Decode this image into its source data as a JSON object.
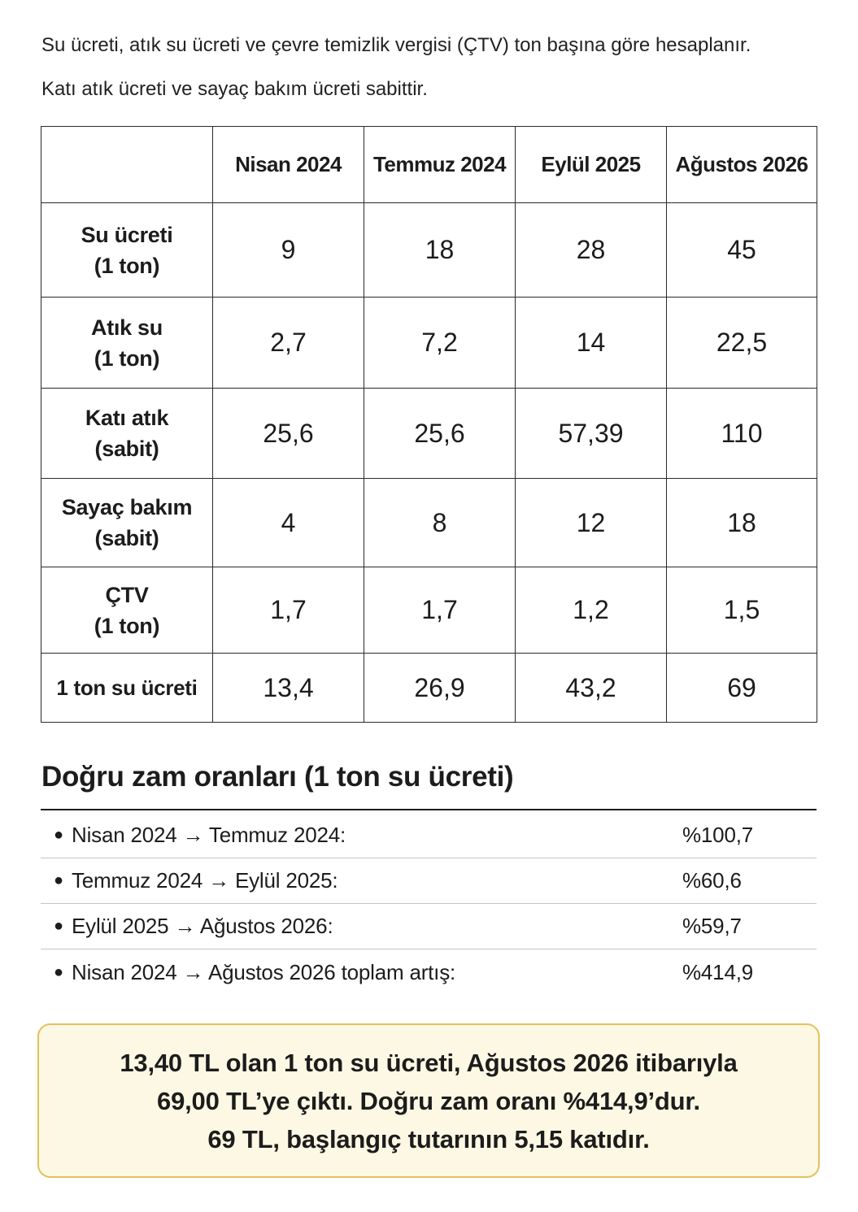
{
  "intro": {
    "line1": "Su ücreti, atık su ücreti ve çevre temizlik vergisi (ÇTV) ton başına göre hesaplanır.",
    "line2": "Katı atık ücreti ve sayaç bakım ücreti sabittir."
  },
  "table": {
    "corner": "",
    "columns": [
      "Nisan 2024",
      "Temmuz 2024",
      "Eylül 2025",
      "Ağustos 2026"
    ],
    "rows": [
      {
        "label_line1": "Su ücreti",
        "label_line2": "(1 ton)",
        "values": [
          "9",
          "18",
          "28",
          "45"
        ]
      },
      {
        "label_line1": "Atık su",
        "label_line2": "(1 ton)",
        "values": [
          "2,7",
          "7,2",
          "14",
          "22,5"
        ]
      },
      {
        "label_line1": "Katı atık",
        "label_line2": "(sabit)",
        "values": [
          "25,6",
          "25,6",
          "57,39",
          "110"
        ]
      },
      {
        "label_line1": "Sayaç bakım",
        "label_line2": "(sabit)",
        "values": [
          "4",
          "8",
          "12",
          "18"
        ]
      },
      {
        "label_line1": "ÇTV",
        "label_line2": "(1 ton)",
        "values": [
          "1,7",
          "1,7",
          "1,2",
          "1,5"
        ]
      },
      {
        "label_line1": "1 ton su ücreti",
        "label_line2": "",
        "values": [
          "13,4",
          "26,9",
          "43,2",
          "69"
        ]
      }
    ]
  },
  "rates": {
    "title": "Doğru zam oranları (1 ton su ücreti)",
    "items": [
      {
        "label": "Nisan 2024 → Temmuz 2024:",
        "value": "%100,7"
      },
      {
        "label": "Temmuz 2024 → Eylül 2025:",
        "value": "%60,6"
      },
      {
        "label": "Eylül 2025 → Ağustos 2026:",
        "value": "%59,7"
      },
      {
        "label": "Nisan 2024 → Ağustos 2026 toplam artış:",
        "value": "%414,9"
      }
    ]
  },
  "summary": {
    "line1": "13,40 TL olan 1 ton su ücreti, Ağustos 2026 itibarıyla",
    "line2": "69,00 TL’ye çıktı. Doğru zam oranı %414,9’dur.",
    "line3": "69 TL, başlangıç tutarının 5,15 katıdır."
  },
  "colors": {
    "summary_background": "#fdf8e3",
    "summary_border": "#e2c25c"
  }
}
